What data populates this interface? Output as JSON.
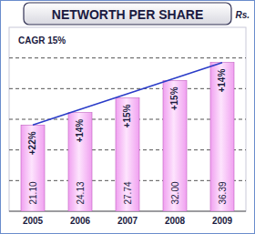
{
  "chart_data": {
    "type": "bar",
    "title": "NETWORTH PER SHARE",
    "ylabel": "Rs.",
    "subtitle": "CAGR 15%",
    "categories": [
      "2005",
      "2006",
      "2007",
      "2008",
      "2009"
    ],
    "values": [
      21.1,
      24.13,
      27.74,
      32.0,
      36.39
    ],
    "value_labels": [
      "21.10",
      "24.13",
      "27.74",
      "32.00",
      "36.39"
    ],
    "annotations": [
      "+22%",
      "+14%",
      "+15%",
      "+15%",
      "+14%"
    ],
    "color": "#f0a0f0",
    "ylim": [
      0,
      45
    ],
    "yticks": [
      0,
      7.5,
      15,
      22.5,
      30,
      37.5
    ],
    "grid": true,
    "data_labels": true,
    "tick_labels": "x"
  }
}
